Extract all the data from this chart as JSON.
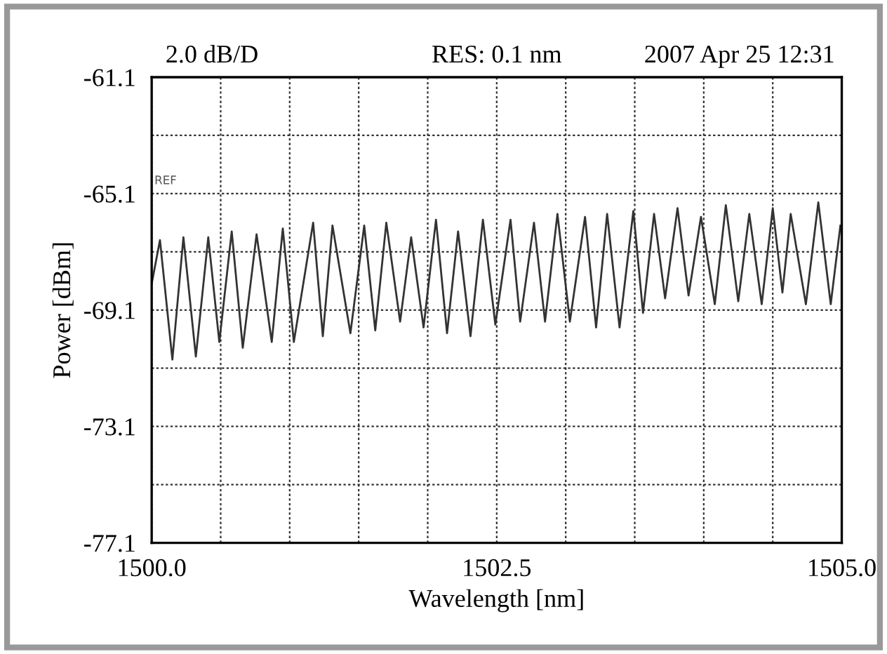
{
  "chart_data": {
    "type": "line",
    "xlabel": "Wavelength [nm]",
    "ylabel": "Power [dBm]",
    "annotations": [
      "2.0 dB/D",
      "RES: 0.1 nm",
      "2007 Apr 25 12:31",
      "REF"
    ],
    "xlim": [
      1500.0,
      1505.0
    ],
    "xticks": [
      {
        "value": 1500.0,
        "label": "1500.0"
      },
      {
        "value": 1500.5,
        "label": null
      },
      {
        "value": 1501.0,
        "label": null
      },
      {
        "value": 1501.5,
        "label": null
      },
      {
        "value": 1502.0,
        "label": null
      },
      {
        "value": 1502.5,
        "label": "1502.5"
      },
      {
        "value": 1503.0,
        "label": null
      },
      {
        "value": 1503.5,
        "label": null
      },
      {
        "value": 1504.0,
        "label": null
      },
      {
        "value": 1504.5,
        "label": null
      },
      {
        "value": 1505.0,
        "label": "1505.0"
      }
    ],
    "ylim": [
      -77.1,
      -61.1
    ],
    "yticks": [
      -77.1,
      {
        "value": -75.1,
        "label": null
      },
      -73.1,
      {
        "value": -71.1,
        "label": null
      },
      -69.1,
      {
        "value": -67.1,
        "label": null
      },
      -65.1,
      {
        "value": -63.1,
        "label": null
      },
      -61.1
    ],
    "grid": true,
    "marker": "none",
    "line_style": "solid",
    "series": [
      {
        "color": "#333333",
        "x": [
          1500.0,
          1500.06,
          1500.15,
          1500.23,
          1500.32,
          1500.41,
          1500.49,
          1500.58,
          1500.66,
          1500.76,
          1500.87,
          1500.95,
          1501.03,
          1501.17,
          1501.24,
          1501.31,
          1501.44,
          1501.54,
          1501.62,
          1501.7,
          1501.8,
          1501.88,
          1501.97,
          1502.06,
          1502.14,
          1502.22,
          1502.31,
          1502.4,
          1502.49,
          1502.6,
          1502.67,
          1502.77,
          1502.85,
          1502.94,
          1503.03,
          1503.14,
          1503.22,
          1503.3,
          1503.39,
          1503.49,
          1503.56,
          1503.64,
          1503.72,
          1503.81,
          1503.89,
          1503.98,
          1504.08,
          1504.16,
          1504.25,
          1504.33,
          1504.42,
          1504.5,
          1504.57,
          1504.63,
          1504.74,
          1504.83,
          1504.92,
          1504.99
        ],
        "values": [
          -68.2,
          -66.7,
          -70.8,
          -66.6,
          -70.7,
          -66.6,
          -70.2,
          -66.4,
          -70.4,
          -66.5,
          -70.2,
          -66.3,
          -70.2,
          -66.1,
          -70.0,
          -66.2,
          -69.9,
          -66.2,
          -69.8,
          -66.1,
          -69.5,
          -66.6,
          -69.7,
          -66.0,
          -69.9,
          -66.4,
          -70.0,
          -66.0,
          -69.6,
          -66.0,
          -69.5,
          -66.1,
          -69.5,
          -65.8,
          -69.5,
          -65.9,
          -69.7,
          -65.8,
          -69.7,
          -65.7,
          -69.2,
          -65.8,
          -68.7,
          -65.6,
          -68.6,
          -65.9,
          -68.9,
          -65.5,
          -68.8,
          -65.8,
          -68.9,
          -65.6,
          -68.5,
          -65.8,
          -68.9,
          -65.4,
          -68.9,
          -66.2
        ]
      }
    ]
  }
}
